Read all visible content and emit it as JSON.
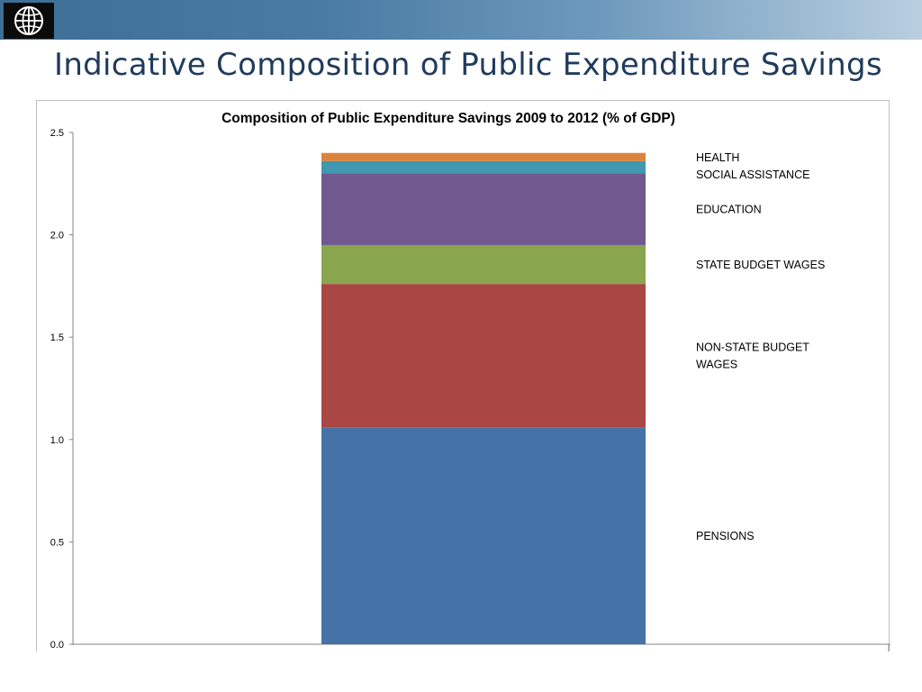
{
  "slide": {
    "title": "Indicative Composition of Public Expenditure Savings",
    "logo_icon": "globe-icon"
  },
  "colors": {
    "banner_start": "#3c6e96",
    "banner_end": "#b9cfe0",
    "title": "#1f3b5c"
  },
  "chart_data": {
    "type": "bar",
    "stacked": true,
    "title": "Composition of Public Expenditure Savings 2009 to 2012 (% of GDP)",
    "xlabel": "",
    "ylabel": "",
    "ylim": [
      0,
      2.5
    ],
    "yticks": [
      "0.0",
      "0.5",
      "1.0",
      "1.5",
      "2.0",
      "2.5"
    ],
    "grid": false,
    "legend": "right-of-bar",
    "categories": [
      ""
    ],
    "series": [
      {
        "name": "PENSIONS",
        "values": [
          1.06
        ],
        "color": "#4572a7"
      },
      {
        "name": "NON-STATE BUDGET WAGES",
        "values": [
          0.7
        ],
        "color": "#aa4643"
      },
      {
        "name": "STATE BUDGET WAGES",
        "values": [
          0.19
        ],
        "color": "#89a54e"
      },
      {
        "name": "EDUCATION",
        "values": [
          0.35
        ],
        "color": "#71588f"
      },
      {
        "name": "SOCIAL ASSISTANCE",
        "values": [
          0.06
        ],
        "color": "#4198af"
      },
      {
        "name": "HEALTH",
        "values": [
          0.04
        ],
        "color": "#db843d"
      }
    ]
  }
}
